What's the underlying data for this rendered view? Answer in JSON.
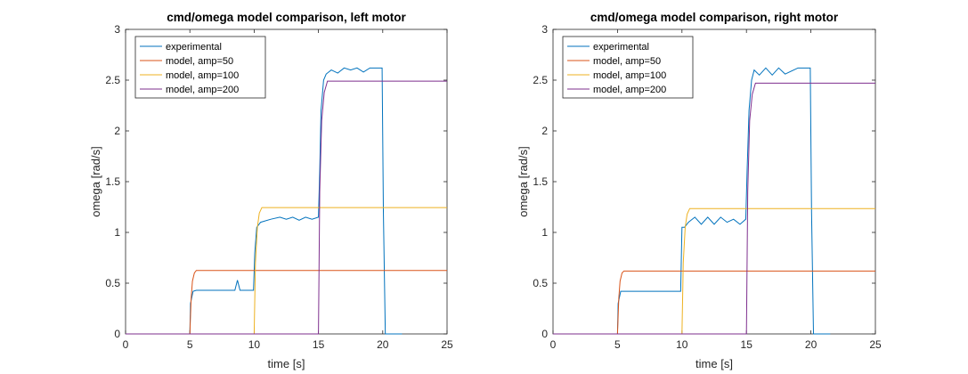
{
  "chart_data": [
    {
      "type": "line",
      "title": "cmd/omega model comparison, left motor",
      "xlabel": "time [s]",
      "ylabel": "omega [rad/s]",
      "xlim": [
        0,
        25
      ],
      "ylim": [
        0,
        3
      ],
      "xticks": [
        "0",
        "5",
        "10",
        "15",
        "20",
        "25"
      ],
      "yticks": [
        "0",
        "0.5",
        "1",
        "1.5",
        "2",
        "2.5",
        "3"
      ],
      "legend_position": "top-left",
      "series": [
        {
          "name": "experimental",
          "color": "#0072BD",
          "x": [
            0,
            5.0,
            5.05,
            5.25,
            5.5,
            8.5,
            8.7,
            8.9,
            9.95,
            10.05,
            10.2,
            10.5,
            11.3,
            12,
            12.5,
            13,
            13.5,
            14,
            14.5,
            15.0,
            15.1,
            15.2,
            15.4,
            15.6,
            16,
            16.5,
            17,
            17.5,
            18,
            18.5,
            19,
            19.5,
            19.95,
            20.05,
            20.2,
            21.5
          ],
          "y": [
            0,
            0,
            0.3,
            0.42,
            0.43,
            0.43,
            0.53,
            0.43,
            0.43,
            0.8,
            1.05,
            1.1,
            1.13,
            1.15,
            1.13,
            1.15,
            1.12,
            1.15,
            1.13,
            1.15,
            1.6,
            2.2,
            2.5,
            2.56,
            2.6,
            2.57,
            2.62,
            2.6,
            2.62,
            2.58,
            2.62,
            2.62,
            2.62,
            1.2,
            0,
            0
          ]
        },
        {
          "name": "model, amp=50",
          "color": "#D95319",
          "x": [
            0,
            5.0,
            5.1,
            5.2,
            5.35,
            5.5,
            25
          ],
          "y": [
            0,
            0,
            0.35,
            0.52,
            0.6,
            0.625,
            0.625
          ]
        },
        {
          "name": "model, amp=100",
          "color": "#EDB120",
          "x": [
            0,
            10.0,
            10.1,
            10.25,
            10.4,
            10.6,
            25
          ],
          "y": [
            0,
            0,
            0.7,
            1.05,
            1.19,
            1.245,
            1.245
          ]
        },
        {
          "name": "model, amp=200",
          "color": "#7E2F8E",
          "x": [
            0,
            15.0,
            15.1,
            15.25,
            15.45,
            15.7,
            25
          ],
          "y": [
            0,
            0,
            1.4,
            2.1,
            2.38,
            2.49,
            2.49
          ]
        }
      ]
    },
    {
      "type": "line",
      "title": "cmd/omega model comparison, right motor",
      "xlabel": "time [s]",
      "ylabel": "omega [rad/s]",
      "xlim": [
        0,
        25
      ],
      "ylim": [
        0,
        3
      ],
      "xticks": [
        "0",
        "5",
        "10",
        "15",
        "20",
        "25"
      ],
      "yticks": [
        "0",
        "0.5",
        "1",
        "1.5",
        "2",
        "2.5",
        "3"
      ],
      "legend_position": "top-left",
      "series": [
        {
          "name": "experimental",
          "color": "#0072BD",
          "x": [
            0,
            5.0,
            5.05,
            5.25,
            5.5,
            9.9,
            10.0,
            10.2,
            10.5,
            11,
            11.5,
            12,
            12.5,
            13,
            13.5,
            14,
            14.5,
            14.95,
            15.05,
            15.2,
            15.4,
            15.6,
            16,
            16.5,
            17,
            17.5,
            18,
            19,
            19.5,
            19.95,
            20.05,
            20.2,
            21.5
          ],
          "y": [
            0,
            0,
            0.3,
            0.42,
            0.42,
            0.42,
            1.05,
            1.05,
            1.1,
            1.15,
            1.08,
            1.15,
            1.08,
            1.15,
            1.1,
            1.13,
            1.08,
            1.13,
            1.6,
            2.2,
            2.5,
            2.6,
            2.55,
            2.62,
            2.55,
            2.62,
            2.56,
            2.62,
            2.62,
            2.62,
            1.2,
            0,
            0
          ]
        },
        {
          "name": "model, amp=50",
          "color": "#D95319",
          "x": [
            0,
            5.0,
            5.1,
            5.2,
            5.35,
            5.5,
            25
          ],
          "y": [
            0,
            0,
            0.35,
            0.52,
            0.6,
            0.62,
            0.62
          ]
        },
        {
          "name": "model, amp=100",
          "color": "#EDB120",
          "x": [
            0,
            10.0,
            10.1,
            10.25,
            10.4,
            10.6,
            25
          ],
          "y": [
            0,
            0,
            0.7,
            1.05,
            1.18,
            1.235,
            1.235
          ]
        },
        {
          "name": "model, amp=200",
          "color": "#7E2F8E",
          "x": [
            0,
            15.0,
            15.1,
            15.25,
            15.45,
            15.7,
            25
          ],
          "y": [
            0,
            0,
            1.4,
            2.1,
            2.36,
            2.47,
            2.47
          ]
        }
      ]
    }
  ]
}
